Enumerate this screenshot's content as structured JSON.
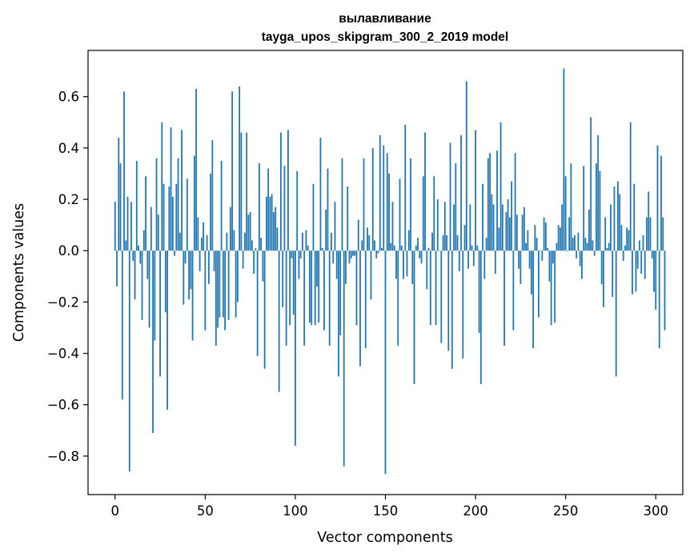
{
  "chart_data": {
    "type": "bar",
    "title": "вылавливание",
    "subtitle": "tayga_upos_skipgram_300_2_2019 model",
    "xlabel": "Vector components",
    "ylabel": "Components values",
    "xlim": [
      -15,
      315
    ],
    "ylim": [
      -0.95,
      0.78
    ],
    "xticks": [
      0,
      50,
      100,
      150,
      200,
      250,
      300
    ],
    "xtick_labels": [
      "0",
      "50",
      "100",
      "150",
      "200",
      "250",
      "300"
    ],
    "yticks": [
      -0.8,
      -0.6,
      -0.4,
      -0.2,
      0.0,
      0.2,
      0.4,
      0.6
    ],
    "ytick_labels": [
      "−0.8",
      "−0.6",
      "−0.4",
      "−0.2",
      "0.0",
      "0.2",
      "0.4",
      "0.6"
    ],
    "grid": false,
    "bar_color": "#1f77b4",
    "values": [
      0.19,
      -0.14,
      0.44,
      0.34,
      -0.58,
      0.62,
      0.04,
      0.21,
      -0.86,
      0.19,
      -0.04,
      -0.19,
      0.35,
      0.02,
      -0.05,
      -0.27,
      0.08,
      0.29,
      -0.11,
      -0.3,
      0.17,
      -0.71,
      -0.35,
      0.36,
      0.14,
      -0.49,
      0.5,
      0.26,
      -0.24,
      -0.62,
      0.25,
      0.48,
      0.21,
      -0.02,
      0.26,
      0.36,
      0.07,
      0.47,
      -0.21,
      -0.05,
      0.28,
      -0.19,
      -0.15,
      -0.35,
      0.37,
      0.63,
      0.13,
      -0.08,
      0.05,
      0.11,
      -0.31,
      0.06,
      -0.13,
      0.3,
      0.43,
      -0.08,
      -0.37,
      -0.3,
      -0.26,
      0.35,
      -0.26,
      -0.31,
      0.07,
      -0.27,
      0.17,
      0.62,
      0.08,
      -0.26,
      -0.2,
      0.64,
      0.46,
      -0.07,
      0.07,
      0.46,
      0.14,
      0.15,
      0.04,
      -0.09,
      0.01,
      -0.41,
      0.34,
      0.05,
      -0.12,
      -0.46,
      0.21,
      0.32,
      0.21,
      0.22,
      0.15,
      0.17,
      0.09,
      -0.55,
      0.46,
      -0.22,
      0.33,
      -0.37,
      0.47,
      -0.29,
      -0.03,
      -0.25,
      -0.76,
      0.31,
      -0.11,
      -0.03,
      0.07,
      -0.37,
      0.08,
      0.02,
      -0.28,
      -0.29,
      0.26,
      -0.29,
      -0.14,
      -0.28,
      0.44,
      0.01,
      -0.31,
      0.16,
      0.32,
      -0.37,
      0.07,
      -0.05,
      0.19,
      -0.11,
      -0.49,
      -0.33,
      0.36,
      -0.84,
      -0.13,
      0.25,
      -0.05,
      -0.03,
      -0.02,
      -0.02,
      -0.29,
      0.12,
      -0.45,
      0.04,
      0.36,
      -0.38,
      0.09,
      0.06,
      -0.19,
      0.4,
      0.04,
      -0.03,
      -0.01,
      0.45,
      0.01,
      0.41,
      -0.87,
      0.38,
      0.3,
      0.03,
      0.19,
      0.02,
      -0.11,
      -0.37,
      0.28,
      0.02,
      -0.11,
      0.49,
      -0.1,
      0.08,
      0.36,
      -0.13,
      -0.52,
      0.02,
      0.05,
      -0.03,
      -0.05,
      0.29,
      0.46,
      -0.15,
      0.01,
      -0.29,
      0.07,
      0.29,
      -0.29,
      0.2,
      0.0,
      -0.36,
      0.06,
      0.19,
      0.06,
      -0.39,
      0.42,
      -0.46,
      0.18,
      0.34,
      0.06,
      -0.08,
      0.45,
      -0.42,
      0.1,
      0.66,
      -0.07,
      0.18,
      0.02,
      -0.06,
      0.47,
      0.02,
      -0.32,
      -0.52,
      0.26,
      -0.11,
      0.05,
      0.36,
      0.38,
      0.22,
      0.18,
      -0.09,
      0.39,
      0.09,
      0.5,
      0.18,
      -0.37,
      0.15,
      0.2,
      0.13,
      0.27,
      -0.31,
      0.38,
      0.14,
      -0.07,
      -0.13,
      0.14,
      0.17,
      0.03,
      0.08,
      -0.07,
      -0.17,
      -0.38,
      0.1,
      0.05,
      -0.26,
      0.0,
      -0.04,
      0.13,
      0.11,
      0.01,
      -0.12,
      -0.29,
      -0.05,
      -0.28,
      0.03,
      0.1,
      0.09,
      0.18,
      0.71,
      0.29,
      0.0,
      0.13,
      0.34,
      0.05,
      0.06,
      -0.03,
      0.07,
      -0.06,
      -0.11,
      0.33,
      0.05,
      0.03,
      0.16,
      0.52,
      0.04,
      -0.02,
      0.34,
      0.45,
      0.31,
      -0.13,
      -0.22,
      0.13,
      0.01,
      0.03,
      0.18,
      -0.18,
      0.25,
      -0.49,
      0.27,
      0.22,
      0.1,
      -0.04,
      0.02,
      0.09,
      0.08,
      0.5,
      -0.17,
      0.26,
      -0.16,
      -0.07,
      0.04,
      -0.09,
      0.06,
      -0.11,
      0.13,
      0.23,
      0.13,
      -0.03,
      -0.16,
      -0.23,
      0.41,
      -0.38,
      0.37,
      0.13,
      -0.31
    ]
  }
}
